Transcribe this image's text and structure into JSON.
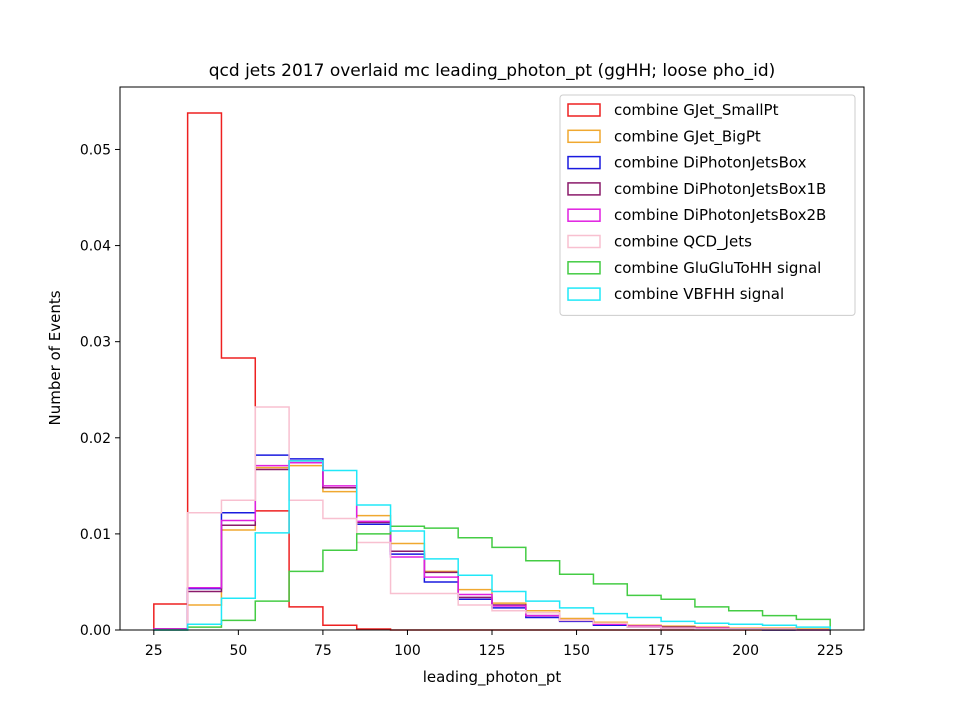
{
  "chart_data": {
    "type": "step-histogram",
    "title": "qcd jets 2017 overlaid mc leading_photon_pt (ggHH; loose pho_id)",
    "xlabel": "leading_photon_pt",
    "ylabel": "Number of Events",
    "xlim": [
      15,
      235
    ],
    "ylim": [
      0,
      0.0565
    ],
    "xticks": [
      "25",
      "50",
      "75",
      "100",
      "125",
      "150",
      "175",
      "200",
      "225"
    ],
    "yticks": [
      "0.00",
      "0.01",
      "0.02",
      "0.03",
      "0.04",
      "0.05"
    ],
    "bin_edges": [
      25,
      35,
      45,
      55,
      65,
      75,
      85,
      95,
      105,
      115,
      125,
      135,
      145,
      155,
      165,
      175,
      185,
      195,
      205,
      215,
      225
    ],
    "legend_position": "top-right",
    "series": [
      {
        "name": "combine GJet_SmallPt",
        "color": "#ee2020",
        "values": [
          0.0027,
          0.0538,
          0.0283,
          0.0124,
          0.0024,
          0.0005,
          0.0001,
          0,
          0,
          0,
          0,
          0,
          0,
          0,
          0,
          0,
          0,
          0,
          0,
          0
        ]
      },
      {
        "name": "combine GJet_BigPt",
        "color": "#f0a830",
        "values": [
          0.0001,
          0.0026,
          0.0104,
          0.0169,
          0.0171,
          0.0144,
          0.0119,
          0.009,
          0.0061,
          0.0042,
          0.0028,
          0.002,
          0.0012,
          0.0008,
          0.0005,
          0.0004,
          0.0003,
          0.0002,
          0.0002,
          0.0001
        ]
      },
      {
        "name": "combine DiPhotonJetsBox",
        "color": "#1a1adf",
        "values": [
          0.0001,
          0.0043,
          0.0122,
          0.0182,
          0.0178,
          0.0148,
          0.011,
          0.0079,
          0.005,
          0.0032,
          0.0023,
          0.0013,
          0.0009,
          0.0005,
          0.0003,
          0.0002,
          0.0001,
          0.0001,
          0,
          0
        ]
      },
      {
        "name": "combine DiPhotonJetsBox1B",
        "color": "#8a1a6a",
        "values": [
          0.0001,
          0.004,
          0.0109,
          0.0167,
          0.0176,
          0.0148,
          0.0112,
          0.0082,
          0.006,
          0.0034,
          0.0026,
          0.0015,
          0.001,
          0.0007,
          0.0004,
          0.0003,
          0.0002,
          0.0001,
          0.0001,
          0
        ]
      },
      {
        "name": "combine DiPhotonJetsBox2B",
        "color": "#e020e0",
        "values": [
          0.0001,
          0.0044,
          0.0114,
          0.0171,
          0.0174,
          0.015,
          0.0113,
          0.0076,
          0.0055,
          0.0037,
          0.0025,
          0.0015,
          0.001,
          0.0006,
          0.0004,
          0.0002,
          0.0002,
          0.0001,
          0.0001,
          0
        ]
      },
      {
        "name": "combine QCD_Jets",
        "color": "#f8c0d0",
        "values": [
          0,
          0.0122,
          0.0135,
          0.0232,
          0.0135,
          0.0116,
          0.0091,
          0.0038,
          0.0038,
          0.0026,
          0.002,
          0.0018,
          0.001,
          0.0007,
          0.0003,
          0.0002,
          0.0001,
          0.0001,
          0.0001,
          0
        ]
      },
      {
        "name": "combine GluGluToHH signal",
        "color": "#44cc44",
        "values": [
          0,
          0.0003,
          0.001,
          0.003,
          0.0061,
          0.0083,
          0.01,
          0.0108,
          0.0106,
          0.0096,
          0.0086,
          0.0072,
          0.0058,
          0.0048,
          0.0036,
          0.0032,
          0.0024,
          0.002,
          0.0015,
          0.0011
        ]
      },
      {
        "name": "combine VBFHH signal",
        "color": "#20e8f8",
        "values": [
          0,
          0.0006,
          0.0033,
          0.0101,
          0.0176,
          0.0166,
          0.013,
          0.0103,
          0.0074,
          0.0057,
          0.004,
          0.003,
          0.0023,
          0.0017,
          0.0013,
          0.0009,
          0.0007,
          0.0006,
          0.0005,
          0.0003
        ]
      }
    ]
  }
}
